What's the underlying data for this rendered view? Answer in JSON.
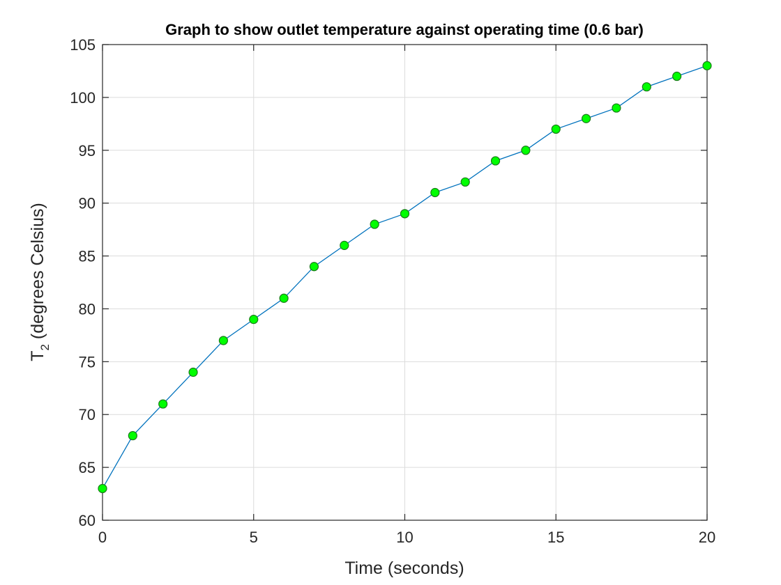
{
  "chart_data": {
    "type": "line",
    "title": "Graph to show outlet temperature against operating time (0.6 bar)",
    "xlabel": "Time (seconds)",
    "ylabel_main": "T",
    "ylabel_sub": "2",
    "ylabel_rest": " (degrees Celsius)",
    "xlim": [
      0,
      20
    ],
    "ylim": [
      60,
      105
    ],
    "xticks": [
      0,
      5,
      10,
      15,
      20
    ],
    "yticks": [
      60,
      65,
      70,
      75,
      80,
      85,
      90,
      95,
      100,
      105
    ],
    "grid": true,
    "series": [
      {
        "x": [
          0,
          1,
          2,
          3,
          4,
          5,
          6,
          7,
          8,
          9,
          10,
          11,
          12,
          13,
          14,
          15,
          16,
          17,
          18,
          19,
          20
        ],
        "y": [
          63,
          68,
          71,
          74,
          77,
          79,
          81,
          84,
          86,
          88,
          89,
          91,
          92,
          94,
          95,
          97,
          98,
          99,
          101,
          102,
          103
        ],
        "line_color": "#0072BD",
        "marker": "circle",
        "marker_fill": "#00FF00",
        "marker_edge": "#1a7a1a"
      }
    ]
  }
}
